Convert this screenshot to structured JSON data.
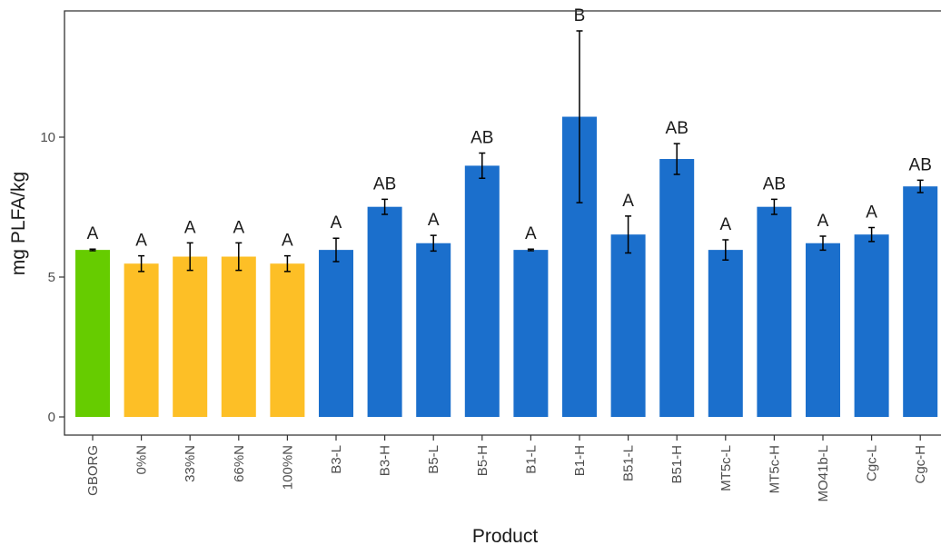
{
  "chart_data": {
    "type": "bar",
    "title": "",
    "xlabel": "Product",
    "ylabel": "mg PLFA/kg",
    "ylim": [
      0,
      14.8
    ],
    "yticks": [
      0,
      5,
      10
    ],
    "grid": false,
    "legend": "none",
    "categories": [
      "GBORG",
      "0%N",
      "33%N",
      "66%N",
      "100%N",
      "B3-L",
      "B3-H",
      "B5-L",
      "B5-H",
      "B1-L",
      "B1-H",
      "B51-L",
      "B51-H",
      "MT5c-L",
      "MT5c-H",
      "MO41b-L",
      "Cgc-L",
      "Cgc-H"
    ],
    "values": [
      5.97,
      5.48,
      5.73,
      5.73,
      5.48,
      5.97,
      7.51,
      6.21,
      8.98,
      5.97,
      10.73,
      6.52,
      9.22,
      5.97,
      7.51,
      6.21,
      6.52,
      8.24
    ],
    "errors": [
      0.03,
      0.28,
      0.49,
      0.49,
      0.28,
      0.42,
      0.27,
      0.28,
      0.45,
      0.03,
      3.07,
      0.66,
      0.55,
      0.36,
      0.27,
      0.25,
      0.25,
      0.22
    ],
    "labels": [
      "A",
      "A",
      "A",
      "A",
      "A",
      "A",
      "AB",
      "A",
      "AB",
      "A",
      "B",
      "A",
      "AB",
      "A",
      "AB",
      "A",
      "A",
      "AB"
    ],
    "colors": [
      "#66cc00",
      "#fdbf26",
      "#fdbf26",
      "#fdbf26",
      "#fdbf26",
      "#1b6fcc",
      "#1b6fcc",
      "#1b6fcc",
      "#1b6fcc",
      "#1b6fcc",
      "#1b6fcc",
      "#1b6fcc",
      "#1b6fcc",
      "#1b6fcc",
      "#1b6fcc",
      "#1b6fcc",
      "#1b6fcc",
      "#1b6fcc"
    ]
  }
}
